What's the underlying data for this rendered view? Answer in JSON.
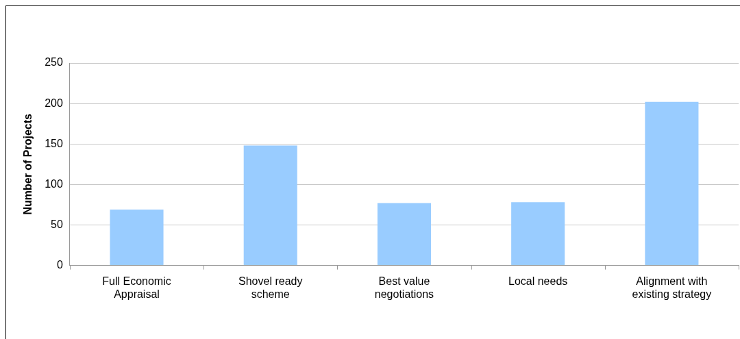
{
  "chart_data": {
    "type": "bar",
    "ylabel": "Number of Projects",
    "categories": [
      "Full Economic Appraisal",
      "Shovel ready scheme",
      "Best value negotiations",
      "Local needs",
      "Alignment with existing strategy"
    ],
    "values": [
      69,
      148,
      77,
      78,
      202
    ],
    "color": "#99ccff",
    "ylim": [
      0,
      250
    ],
    "yticks": [
      0,
      50,
      100,
      150,
      200,
      250
    ],
    "grid": "y",
    "legend": false
  }
}
